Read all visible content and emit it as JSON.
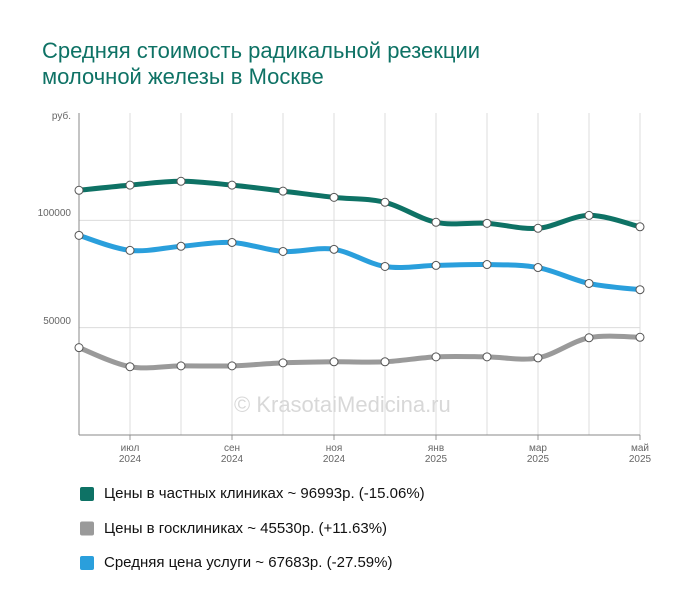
{
  "chart_data": {
    "type": "line",
    "title": "Средняя стоимость радикальной резекции\nмолочной железы в Москве",
    "ylabel": "руб.",
    "watermark": "© KrasotaiMedicina.ru",
    "categories": [
      null,
      "июл\n2024",
      null,
      "сен\n2024",
      null,
      "ноя\n2024",
      null,
      "янв\n2025",
      null,
      "мар\n2025",
      null,
      "май\n2025"
    ],
    "series": [
      {
        "name": "Цены в частных клиниках ~ 96993р. (-15.06%)",
        "color": "#0e7265",
        "values": [
          114000,
          116400,
          118200,
          116400,
          113600,
          110700,
          108400,
          99100,
          98600,
          96300,
          102300,
          96993
        ]
      },
      {
        "name": "Цены в госклиниках ~ 45530р. (+11.63%)",
        "color": "#9a9a9a",
        "values": [
          40700,
          31800,
          32200,
          32200,
          33600,
          34100,
          34100,
          36400,
          36400,
          35900,
          45300,
          45530
        ]
      },
      {
        "name": "Средняя цена услуги ~ 67683р. (-27.59%)",
        "color": "#2a9fdc",
        "values": [
          93000,
          86000,
          87900,
          89700,
          85500,
          86500,
          78500,
          79000,
          79400,
          78000,
          70600,
          67683
        ]
      }
    ],
    "ylim": [
      0,
      150000
    ],
    "yticks": [
      50000,
      100000
    ],
    "grid": true
  }
}
